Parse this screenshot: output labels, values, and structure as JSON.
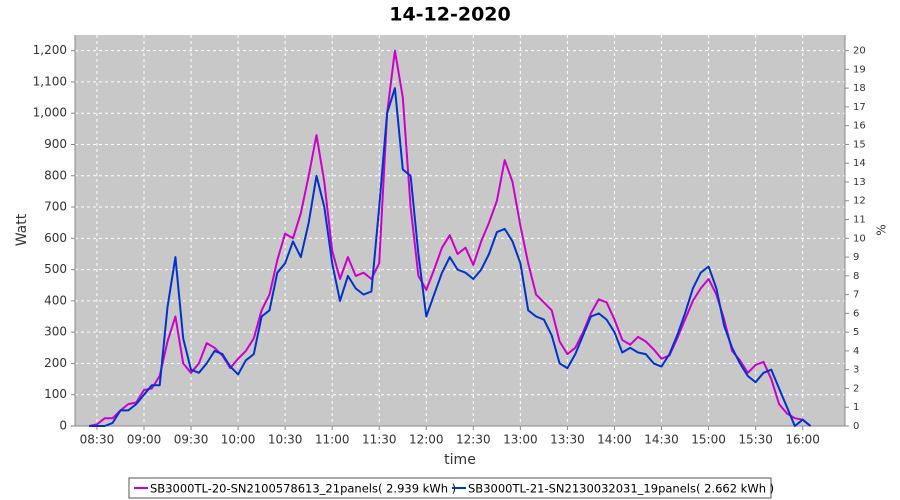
{
  "chart_data": {
    "type": "line",
    "title": "14-12-2020",
    "x_label": "time",
    "y_label": "Watt",
    "y2_label": "%",
    "x": [
      "08:25",
      "08:30",
      "08:35",
      "08:40",
      "08:45",
      "08:50",
      "08:55",
      "09:00",
      "09:05",
      "09:10",
      "09:15",
      "09:20",
      "09:25",
      "09:30",
      "09:35",
      "09:40",
      "09:45",
      "09:50",
      "09:55",
      "10:00",
      "10:05",
      "10:10",
      "10:15",
      "10:20",
      "10:25",
      "10:30",
      "10:35",
      "10:40",
      "10:45",
      "10:50",
      "10:55",
      "11:00",
      "11:05",
      "11:10",
      "11:15",
      "11:20",
      "11:25",
      "11:30",
      "11:35",
      "11:40",
      "11:45",
      "11:50",
      "11:55",
      "12:00",
      "12:05",
      "12:10",
      "12:15",
      "12:20",
      "12:25",
      "12:30",
      "12:35",
      "12:40",
      "12:45",
      "12:50",
      "12:55",
      "13:00",
      "13:05",
      "13:10",
      "13:15",
      "13:20",
      "13:25",
      "13:30",
      "13:35",
      "13:40",
      "13:45",
      "13:50",
      "13:55",
      "14:00",
      "14:05",
      "14:10",
      "14:15",
      "14:20",
      "14:25",
      "14:30",
      "14:35",
      "14:40",
      "14:45",
      "14:50",
      "14:55",
      "15:00",
      "15:05",
      "15:10",
      "15:15",
      "15:20",
      "15:25",
      "15:30",
      "15:35",
      "15:40",
      "15:45",
      "15:50",
      "15:55",
      "16:00",
      "16:05"
    ],
    "series": [
      {
        "name": "SB3000TL-20-SN2100578613_21panels( 2.939 kWh )",
        "color": "#cc00cc",
        "values": [
          0,
          5,
          25,
          25,
          50,
          70,
          75,
          115,
          120,
          160,
          270,
          350,
          200,
          170,
          200,
          265,
          250,
          225,
          185,
          215,
          240,
          280,
          370,
          420,
          530,
          615,
          600,
          680,
          800,
          930,
          780,
          560,
          470,
          540,
          480,
          490,
          470,
          520,
          1000,
          1200,
          1050,
          700,
          480,
          435,
          500,
          570,
          610,
          550,
          570,
          515,
          590,
          650,
          720,
          850,
          780,
          640,
          520,
          420,
          395,
          370,
          270,
          230,
          250,
          300,
          360,
          405,
          395,
          340,
          275,
          260,
          285,
          270,
          245,
          215,
          225,
          280,
          340,
          400,
          440,
          470,
          420,
          340,
          240,
          210,
          170,
          195,
          205,
          150,
          70,
          40,
          25,
          20,
          0
        ]
      },
      {
        "name": "SB3000TL-21-SN2130032031_19panels( 2.662 kWh )",
        "color": "#0033cc",
        "values": [
          0,
          0,
          0,
          10,
          50,
          50,
          70,
          100,
          130,
          130,
          380,
          540,
          280,
          180,
          170,
          200,
          240,
          230,
          190,
          165,
          210,
          230,
          350,
          370,
          490,
          520,
          590,
          540,
          650,
          800,
          700,
          520,
          400,
          480,
          440,
          420,
          430,
          700,
          1000,
          1080,
          820,
          800,
          550,
          350,
          420,
          490,
          540,
          500,
          490,
          470,
          500,
          550,
          620,
          630,
          590,
          520,
          370,
          350,
          340,
          290,
          200,
          185,
          230,
          290,
          350,
          360,
          340,
          300,
          235,
          250,
          235,
          230,
          200,
          190,
          230,
          290,
          360,
          440,
          490,
          510,
          440,
          320,
          250,
          200,
          160,
          140,
          170,
          180,
          120,
          60,
          0,
          20,
          0
        ]
      }
    ],
    "xlim": [
      "08:16",
      "16:27"
    ],
    "xticks": [
      "08:30",
      "09:00",
      "09:30",
      "10:00",
      "10:30",
      "11:00",
      "11:30",
      "12:00",
      "12:30",
      "13:00",
      "13:30",
      "14:00",
      "14:30",
      "15:00",
      "15:30",
      "16:00"
    ],
    "ylim": [
      0,
      1250
    ],
    "yticks": [
      0,
      100,
      200,
      300,
      400,
      500,
      600,
      700,
      800,
      900,
      {
        "value": 1000,
        "label": "1,000"
      },
      {
        "value": 1100,
        "label": "1,100"
      },
      {
        "value": 1200,
        "label": "1,200"
      }
    ],
    "y2lim": [
      0,
      20.83
    ],
    "y2ticks": [
      0,
      1,
      2,
      3,
      4,
      5,
      6,
      7,
      8,
      9,
      10,
      11,
      12,
      13,
      14,
      15,
      16,
      17,
      18,
      19,
      20
    ],
    "grid": true
  }
}
